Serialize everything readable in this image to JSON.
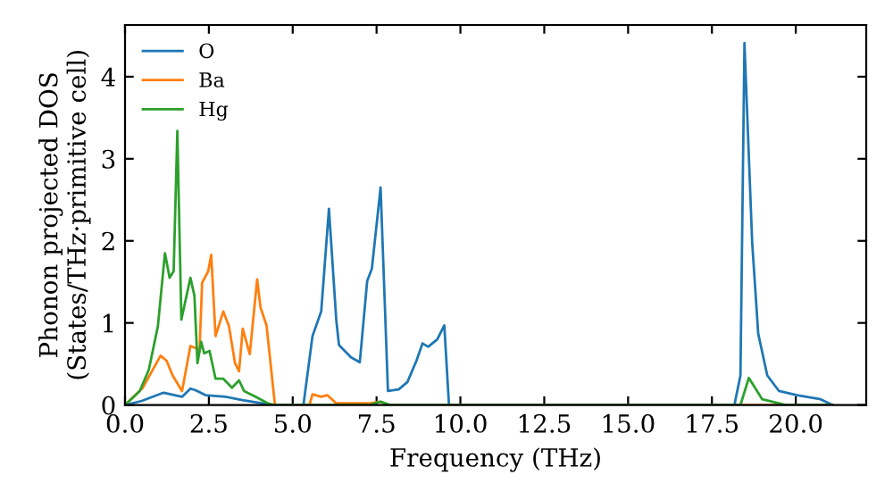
{
  "chart_data": {
    "type": "line",
    "xlabel": "Frequency (THz)",
    "ylabel": "Phonon projected DOS\n(States/THz·primitive cell)",
    "xlim": [
      0,
      22.1
    ],
    "ylim": [
      0,
      4.63
    ],
    "xticks": [
      {
        "value": 0,
        "label": "0.0"
      },
      {
        "value": 2.5,
        "label": "2.5"
      },
      {
        "value": 5,
        "label": "5.0"
      },
      {
        "value": 7.5,
        "label": "7.5"
      },
      {
        "value": 10,
        "label": "10.0"
      },
      {
        "value": 12.5,
        "label": "12.5"
      },
      {
        "value": 15,
        "label": "15.0"
      },
      {
        "value": 17.5,
        "label": "17.5"
      },
      {
        "value": 20,
        "label": "20.0"
      }
    ],
    "yticks": [
      0,
      1,
      2,
      3,
      4
    ],
    "grid": false,
    "legend": "top left",
    "marker": "none",
    "line_style": "solid",
    "series": [
      {
        "name": "O",
        "color": "#1f77b4",
        "x": [
          0,
          0.5,
          1.15,
          1.7,
          1.95,
          2.1,
          2.4,
          3.0,
          3.5,
          4.4,
          5.32,
          5.59,
          5.85,
          6.08,
          6.3,
          6.38,
          6.74,
          7.0,
          7.22,
          7.36,
          7.62,
          7.84,
          8.16,
          8.42,
          8.69,
          8.87,
          9.04,
          9.31,
          9.52,
          9.66,
          18.17,
          18.35,
          18.47,
          18.7,
          18.88,
          19.15,
          19.5,
          20.04,
          20.74,
          21.1
        ],
        "values": [
          0,
          0.05,
          0.15,
          0.1,
          0.2,
          0.18,
          0.12,
          0.1,
          0.06,
          0,
          0,
          0.84,
          1.14,
          2.39,
          1.03,
          0.73,
          0.58,
          0.52,
          1.51,
          1.66,
          2.65,
          0.17,
          0.19,
          0.28,
          0.54,
          0.75,
          0.71,
          0.8,
          0.97,
          0,
          0,
          0.36,
          4.41,
          1.98,
          0.87,
          0.36,
          0.17,
          0.12,
          0.07,
          0
        ]
      },
      {
        "name": "Ba",
        "color": "#ff7f0e",
        "x": [
          0,
          0.53,
          1.06,
          1.24,
          1.42,
          1.7,
          1.95,
          2.13,
          2.22,
          2.3,
          2.48,
          2.57,
          2.7,
          2.93,
          3.1,
          3.28,
          3.4,
          3.51,
          3.72,
          3.94,
          4.04,
          4.22,
          4.47,
          5.5,
          5.59,
          5.85,
          6.03,
          6.3,
          7.27,
          7.62,
          7.84,
          21.1
        ],
        "values": [
          0,
          0.21,
          0.6,
          0.54,
          0.36,
          0.17,
          0.72,
          0.69,
          0.66,
          1.49,
          1.63,
          1.83,
          0.84,
          1.14,
          0.96,
          0.51,
          0.41,
          0.93,
          0.62,
          1.53,
          1.19,
          0.97,
          0,
          0,
          0.13,
          0.1,
          0.12,
          0.02,
          0.02,
          0.04,
          0,
          0
        ]
      },
      {
        "name": "Hg",
        "color": "#2ca02c",
        "x": [
          0,
          0.44,
          0.71,
          0.98,
          1.19,
          1.33,
          1.45,
          1.56,
          1.68,
          1.95,
          2.07,
          2.16,
          2.27,
          2.36,
          2.52,
          2.7,
          2.93,
          3.19,
          3.4,
          3.55,
          3.9,
          4.26,
          4.47,
          7.3,
          7.62,
          7.9,
          18.35,
          18.6,
          19.0,
          19.7,
          21.1
        ],
        "values": [
          0,
          0.17,
          0.43,
          0.96,
          1.85,
          1.55,
          1.63,
          3.34,
          1.04,
          1.55,
          1.33,
          0.51,
          0.77,
          0.63,
          0.66,
          0.32,
          0.32,
          0.21,
          0.3,
          0.17,
          0.1,
          0.02,
          0,
          0,
          0.04,
          0,
          0,
          0.33,
          0.07,
          0,
          0
        ]
      }
    ]
  }
}
